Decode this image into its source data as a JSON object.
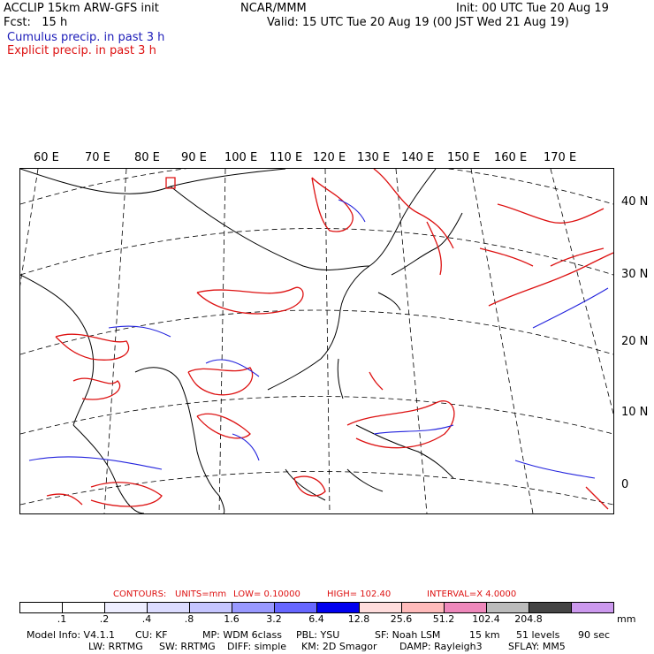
{
  "header": {
    "model_title": "ACCLIP 15km ARW-GFS init",
    "fcst_label": "Fcst:",
    "fcst_value": "15 h",
    "org": "NCAR/MMM",
    "init": "Init: 00 UTC Tue 20 Aug 19",
    "valid": "Valid: 15 UTC Tue 20 Aug 19 (00 JST Wed 21 Aug 19)"
  },
  "legend_text": {
    "cumulus": "Cumulus precip. in past 3 h",
    "explicit": "Explicit precip. in past 3 h"
  },
  "map": {
    "lon_labels": [
      "60 E",
      "70 E",
      "80 E",
      "90 E",
      "100 E",
      "110 E",
      "120 E",
      "130 E",
      "140 E",
      "150 E",
      "160 E",
      "170 E"
    ],
    "lat_labels": [
      "40 N",
      "30 N",
      "20 N",
      "10 N",
      "0"
    ],
    "colors": {
      "cumulus": "#2222dd",
      "explicit": "#dd1111",
      "coast": "#000000"
    },
    "projection": "Mercator-like dashed graticule"
  },
  "contours": {
    "label": "CONTOURS:",
    "units": "UNITS=mm",
    "low": "LOW= 0.10000",
    "high": "HIGH= 102.40",
    "interval": "INTERVAL=X 4.0000"
  },
  "colorbar": {
    "ticks": [
      ".1",
      ".2",
      ".4",
      ".8",
      "1.6",
      "3.2",
      "6.4",
      "12.8",
      "25.6",
      "51.2",
      "102.4",
      "204.8"
    ],
    "unit": "mm",
    "colors": [
      "#ffffff",
      "#ffffff",
      "#eeeeff",
      "#dcdcff",
      "#c6c6ff",
      "#9999ff",
      "#6666ff",
      "#0000ee",
      "#ffdddd",
      "#ffbbbb",
      "#ee88bb",
      "#bbbbbb",
      "#444444",
      "#cc99ee"
    ]
  },
  "footer": {
    "line1": [
      "Model Info: V4.1.1",
      "CU: KF",
      "MP: WDM 6class",
      "PBL: YSU",
      "SF: Noah LSM",
      "15 km",
      "51 levels",
      "90 sec"
    ],
    "line2": [
      "LW: RRTMG",
      "SW: RRTMG",
      "DIFF: simple",
      "KM: 2D Smagor",
      "DAMP: Rayleigh3",
      "SFLAY: MM5"
    ]
  }
}
